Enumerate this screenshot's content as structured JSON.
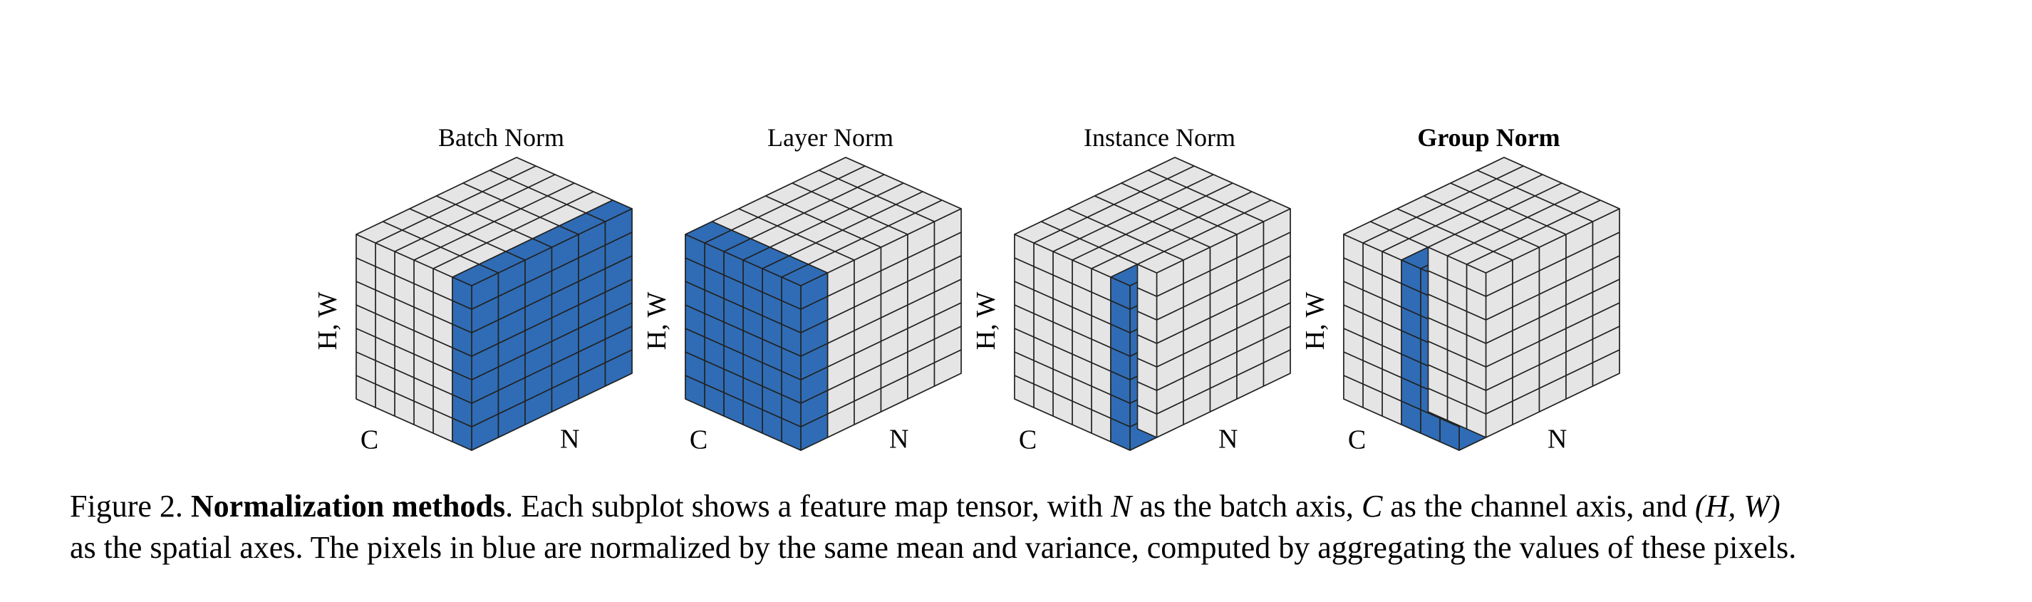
{
  "colors": {
    "highlight": "#2f6cb5",
    "cell": "#e5e5e5",
    "edge": "#222222"
  },
  "grid": {
    "n": 6,
    "c": 6,
    "hw": 7
  },
  "axes": {
    "hw": "H, W",
    "c": "C",
    "n": "N"
  },
  "panels": [
    {
      "title": "Batch Norm",
      "bold": false,
      "highlight": {
        "n": [
          0,
          6
        ],
        "c": [
          0,
          1
        ],
        "hw": [
          0,
          7
        ]
      }
    },
    {
      "title": "Layer Norm",
      "bold": false,
      "highlight": {
        "n": [
          0,
          1
        ],
        "c": [
          0,
          6
        ],
        "hw": [
          0,
          7
        ]
      }
    },
    {
      "title": "Instance Norm",
      "bold": false,
      "highlight": {
        "n": [
          0,
          1
        ],
        "c": [
          0,
          1
        ],
        "hw": [
          0,
          7
        ]
      }
    },
    {
      "title": "Group Norm",
      "bold": true,
      "highlight": {
        "n": [
          0,
          1
        ],
        "c": [
          0,
          3
        ],
        "hw": [
          0,
          7
        ]
      }
    }
  ],
  "caption": {
    "prefix": "Figure 2. ",
    "bold": "Normalization methods",
    "text1": ". Each subplot shows a feature map tensor, with ",
    "n": "N",
    "text2": " as the batch axis, ",
    "c": "C",
    "text3": " as the channel axis, and ",
    "hw": "(H, W)",
    "line2": "as the spatial axes. The pixels in blue are normalized by the same mean and variance, computed by aggregating the values of these pixels."
  }
}
